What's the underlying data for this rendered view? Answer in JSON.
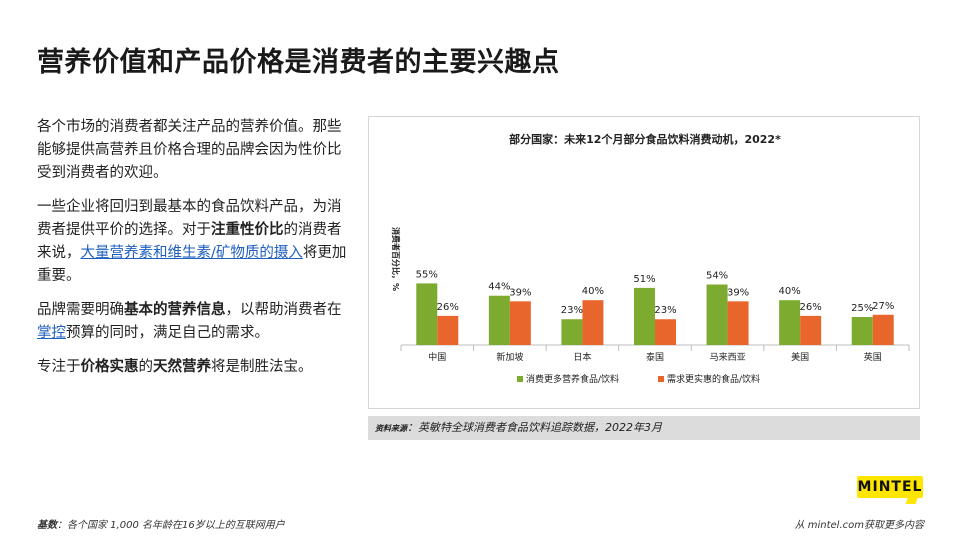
{
  "page": {
    "title": "营养价值和产品价格是消费者的主要兴趣点"
  },
  "body": {
    "p1": "各个市场的消费者都关注产品的营养价值。那些能够提供高营养且价格合理的品牌会因为性价比受到消费者的欢迎。",
    "p2_a": "一些企业将回归到最基本的食品饮料产品，为消费者提供平价的选择。对于",
    "p2_b": "注重性价比",
    "p2_c": "的消费者来说，",
    "p2_link": "大量营养素和维生素/矿物质的摄入",
    "p2_d": "将更加重要。",
    "p3_a": "品牌需要明确",
    "p3_b": "基本的营养信息",
    "p3_c": "，以帮助消费者在",
    "p3_link": "掌控",
    "p3_d": "预算的同时，满足自己的需求。",
    "p4_a": "专注于",
    "p4_b": "价格实惠",
    "p4_c": "的",
    "p4_d": "天然营养",
    "p4_e": "将是制胜法宝。"
  },
  "chart_data": {
    "type": "bar",
    "title": "部分国家：未来12个月部分食品饮料消费动机，2022*",
    "ylabel": "消费者百分比，%",
    "xlabel": "",
    "categories": [
      "中国",
      "新加坡",
      "日本",
      "泰国",
      "马来西亚",
      "美国",
      "英国"
    ],
    "series": [
      {
        "name": "消费更多营养食品/饮料",
        "color": "#7dab2f",
        "values": [
          55,
          44,
          23,
          51,
          54,
          40,
          25
        ]
      },
      {
        "name": "需求更实惠的食品/饮料",
        "color": "#e8662b",
        "values": [
          26,
          39,
          40,
          23,
          39,
          26,
          27
        ]
      }
    ],
    "value_labels": [
      [
        "55%",
        "44%",
        "23%",
        "51%",
        "54%",
        "40%",
        "25%"
      ],
      [
        "26%",
        "39%",
        "40%",
        "23%",
        "39%",
        "26%",
        "27%"
      ]
    ],
    "ylim": [
      0,
      60
    ],
    "grid": false,
    "legend": "bottom"
  },
  "source": {
    "label": "资料来源",
    "text": "：英敏特全球消费者食品饮料追踪数据，2022年3月"
  },
  "footer": {
    "base_label": "基数",
    "base_text": "：各个国家 1,000 名年龄在16岁以上的互联网用户",
    "more": "从 mintel.com获取更多内容"
  },
  "logo": {
    "text": "MINTEL",
    "color": "#ffe600"
  }
}
